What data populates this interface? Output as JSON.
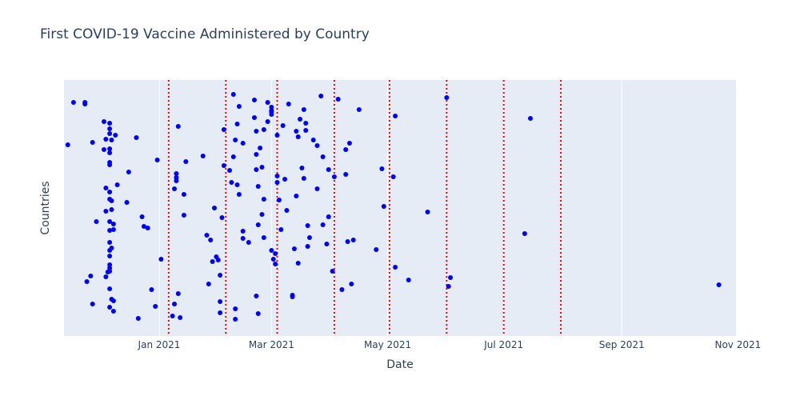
{
  "chart_data": {
    "type": "scatter",
    "title": "First COVID-19 Vaccine Administered by Country",
    "xlabel": "Date",
    "ylabel": "Countries",
    "xlim": [
      "2020-11-12",
      "2021-10-31"
    ],
    "x_ticks": [
      {
        "date": "2021-01-01",
        "label": "Jan 2021"
      },
      {
        "date": "2021-03-01",
        "label": "Mar 2021"
      },
      {
        "date": "2021-05-01",
        "label": "May 2021"
      },
      {
        "date": "2021-07-01",
        "label": "Jul 2021"
      },
      {
        "date": "2021-09-01",
        "label": "Sep 2021"
      },
      {
        "date": "2021-11-01",
        "label": "Nov 2021"
      }
    ],
    "y_tick_labels_shown": false,
    "grid": true,
    "marker_color": "#0000ff",
    "plot_background": "#e5ecf6",
    "vertical_lines": {
      "color": "#ff0000",
      "style": "dotted",
      "dates": [
        "2021-01-06",
        "2021-02-05",
        "2021-03-04",
        "2021-04-03",
        "2021-05-02",
        "2021-06-01",
        "2021-07-01",
        "2021-07-31"
      ]
    },
    "points": [
      [
        "2020-11-14",
        181
      ],
      [
        "2020-11-17",
        128
      ],
      [
        "2020-11-23",
        128
      ],
      [
        "2020-11-23",
        130
      ],
      [
        "2020-11-24",
        352
      ],
      [
        "2020-11-26",
        345
      ],
      [
        "2020-11-27",
        380
      ],
      [
        "2020-11-27",
        178
      ],
      [
        "2020-11-29",
        277
      ],
      [
        "2020-12-03",
        152
      ],
      [
        "2020-12-03",
        187
      ],
      [
        "2020-12-04",
        174
      ],
      [
        "2020-12-04",
        235
      ],
      [
        "2020-12-04",
        264
      ],
      [
        "2020-12-04",
        346
      ],
      [
        "2020-12-05",
        340
      ],
      [
        "2020-12-06",
        154
      ],
      [
        "2020-12-06",
        161
      ],
      [
        "2020-12-06",
        167
      ],
      [
        "2020-12-06",
        186
      ],
      [
        "2020-12-06",
        191
      ],
      [
        "2020-12-06",
        203
      ],
      [
        "2020-12-06",
        206
      ],
      [
        "2020-12-06",
        240
      ],
      [
        "2020-12-06",
        249
      ],
      [
        "2020-12-06",
        277
      ],
      [
        "2020-12-06",
        288
      ],
      [
        "2020-12-06",
        303
      ],
      [
        "2020-12-06",
        313
      ],
      [
        "2020-12-06",
        320
      ],
      [
        "2020-12-06",
        331
      ],
      [
        "2020-12-06",
        335
      ],
      [
        "2020-12-06",
        339
      ],
      [
        "2020-12-06",
        361
      ],
      [
        "2020-12-06",
        384
      ],
      [
        "2020-12-07",
        175
      ],
      [
        "2020-12-07",
        251
      ],
      [
        "2020-12-07",
        262
      ],
      [
        "2020-12-07",
        310
      ],
      [
        "2020-12-07",
        374
      ],
      [
        "2020-12-08",
        280
      ],
      [
        "2020-12-08",
        287
      ],
      [
        "2020-12-08",
        376
      ],
      [
        "2020-12-08",
        389
      ],
      [
        "2020-12-09",
        169
      ],
      [
        "2020-12-10",
        231
      ],
      [
        "2020-12-15",
        253
      ],
      [
        "2020-12-16",
        215
      ],
      [
        "2020-12-20",
        172
      ],
      [
        "2020-12-21",
        398
      ],
      [
        "2020-12-23",
        271
      ],
      [
        "2020-12-24",
        283
      ],
      [
        "2020-12-26",
        285
      ],
      [
        "2020-12-28",
        362
      ],
      [
        "2020-12-30",
        383
      ],
      [
        "2020-12-31",
        200
      ],
      [
        "2021-01-02",
        324
      ],
      [
        "2021-01-08",
        395
      ],
      [
        "2021-01-09",
        380
      ],
      [
        "2021-01-09",
        236
      ],
      [
        "2021-01-10",
        217
      ],
      [
        "2021-01-10",
        222
      ],
      [
        "2021-01-10",
        226
      ],
      [
        "2021-01-11",
        158
      ],
      [
        "2021-01-11",
        367
      ],
      [
        "2021-01-12",
        397
      ],
      [
        "2021-01-14",
        243
      ],
      [
        "2021-01-14",
        269
      ],
      [
        "2021-01-15",
        202
      ],
      [
        "2021-01-24",
        195
      ],
      [
        "2021-01-26",
        294
      ],
      [
        "2021-01-27",
        355
      ],
      [
        "2021-01-28",
        300
      ],
      [
        "2021-01-29",
        327
      ],
      [
        "2021-01-30",
        260
      ],
      [
        "2021-01-31",
        321
      ],
      [
        "2021-02-01",
        325
      ],
      [
        "2021-02-02",
        344
      ],
      [
        "2021-02-02",
        377
      ],
      [
        "2021-02-02",
        391
      ],
      [
        "2021-02-03",
        272
      ],
      [
        "2021-02-04",
        207
      ],
      [
        "2021-02-04",
        162
      ],
      [
        "2021-02-07",
        213
      ],
      [
        "2021-02-08",
        228
      ],
      [
        "2021-02-09",
        118
      ],
      [
        "2021-02-09",
        196
      ],
      [
        "2021-02-10",
        175
      ],
      [
        "2021-02-10",
        399
      ],
      [
        "2021-02-10",
        386
      ],
      [
        "2021-02-11",
        155
      ],
      [
        "2021-02-11",
        231
      ],
      [
        "2021-02-12",
        133
      ],
      [
        "2021-02-12",
        243
      ],
      [
        "2021-02-14",
        289
      ],
      [
        "2021-02-14",
        298
      ],
      [
        "2021-02-14",
        179
      ],
      [
        "2021-02-17",
        303
      ],
      [
        "2021-02-20",
        147
      ],
      [
        "2021-02-20",
        125
      ],
      [
        "2021-02-21",
        164
      ],
      [
        "2021-02-21",
        193
      ],
      [
        "2021-02-21",
        370
      ],
      [
        "2021-02-21",
        212
      ],
      [
        "2021-02-22",
        233
      ],
      [
        "2021-02-22",
        281
      ],
      [
        "2021-02-22",
        392
      ],
      [
        "2021-02-23",
        185
      ],
      [
        "2021-02-24",
        209
      ],
      [
        "2021-02-24",
        268
      ],
      [
        "2021-02-25",
        162
      ],
      [
        "2021-02-25",
        249
      ],
      [
        "2021-02-25",
        297
      ],
      [
        "2021-02-27",
        128
      ],
      [
        "2021-02-27",
        152
      ],
      [
        "2021-02-29",
        134
      ],
      [
        "2021-02-29",
        138
      ],
      [
        "2021-02-29",
        140
      ],
      [
        "2021-02-29",
        143
      ],
      [
        "2021-03-01",
        313
      ],
      [
        "2021-03-02",
        324
      ],
      [
        "2021-03-03",
        317
      ],
      [
        "2021-03-03",
        330
      ],
      [
        "2021-03-04",
        169
      ],
      [
        "2021-03-04",
        220
      ],
      [
        "2021-03-04",
        228
      ],
      [
        "2021-03-05",
        250
      ],
      [
        "2021-03-06",
        287
      ],
      [
        "2021-03-07",
        157
      ],
      [
        "2021-03-08",
        224
      ],
      [
        "2021-03-09",
        263
      ],
      [
        "2021-03-10",
        130
      ],
      [
        "2021-03-12",
        371
      ],
      [
        "2021-03-12",
        369
      ],
      [
        "2021-03-13",
        311
      ],
      [
        "2021-03-14",
        164
      ],
      [
        "2021-03-14",
        245
      ],
      [
        "2021-03-15",
        171
      ],
      [
        "2021-03-15",
        329
      ],
      [
        "2021-03-16",
        149
      ],
      [
        "2021-03-17",
        210
      ],
      [
        "2021-03-18",
        137
      ],
      [
        "2021-03-18",
        223
      ],
      [
        "2021-03-19",
        154
      ],
      [
        "2021-03-19",
        163
      ],
      [
        "2021-03-20",
        282
      ],
      [
        "2021-03-20",
        308
      ],
      [
        "2021-03-21",
        297
      ],
      [
        "2021-03-23",
        175
      ],
      [
        "2021-03-25",
        182
      ],
      [
        "2021-03-25",
        236
      ],
      [
        "2021-03-27",
        120
      ],
      [
        "2021-03-28",
        196
      ],
      [
        "2021-03-28",
        281
      ],
      [
        "2021-03-30",
        305
      ],
      [
        "2021-03-31",
        212
      ],
      [
        "2021-03-31",
        271
      ],
      [
        "2021-04-02",
        339
      ],
      [
        "2021-04-03",
        221
      ],
      [
        "2021-04-05",
        124
      ],
      [
        "2021-04-07",
        362
      ],
      [
        "2021-04-09",
        187
      ],
      [
        "2021-04-09",
        218
      ],
      [
        "2021-04-10",
        302
      ],
      [
        "2021-04-11",
        179
      ],
      [
        "2021-04-12",
        355
      ],
      [
        "2021-04-13",
        300
      ],
      [
        "2021-04-16",
        137
      ],
      [
        "2021-04-25",
        312
      ],
      [
        "2021-04-28",
        211
      ],
      [
        "2021-04-29",
        258
      ],
      [
        "2021-05-04",
        221
      ],
      [
        "2021-05-05",
        334
      ],
      [
        "2021-05-05",
        145
      ],
      [
        "2021-05-12",
        350
      ],
      [
        "2021-05-22",
        265
      ],
      [
        "2021-06-02",
        358
      ],
      [
        "2021-06-03",
        347
      ],
      [
        "2021-06-01",
        122
      ],
      [
        "2021-07-12",
        292
      ],
      [
        "2021-07-15",
        148
      ],
      [
        "2021-10-22",
        356
      ]
    ]
  }
}
